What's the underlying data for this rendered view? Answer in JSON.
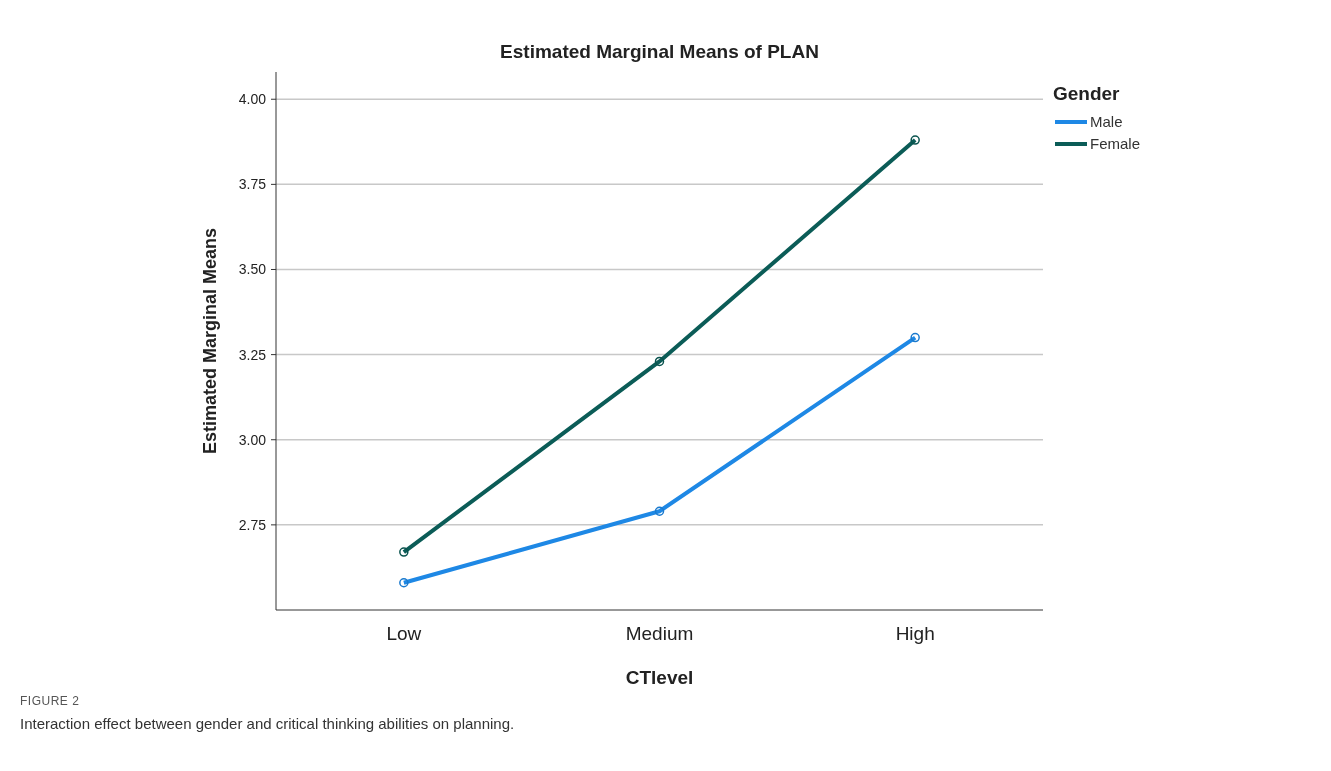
{
  "chart_data": {
    "type": "line",
    "title": "Estimated Marginal Means of PLAN",
    "xlabel": "CTlevel",
    "ylabel": "Estimated Marginal Means",
    "legend_title": "Gender",
    "categories": [
      "Low",
      "Medium",
      "High"
    ],
    "series": [
      {
        "name": "Male",
        "color": "#1e88e5",
        "values": [
          2.58,
          2.79,
          3.3
        ]
      },
      {
        "name": "Female",
        "color": "#0b5c57",
        "values": [
          2.67,
          3.23,
          3.88
        ]
      }
    ],
    "ylim": [
      2.5,
      4.08
    ],
    "yticks": [
      {
        "value": 2.75,
        "label": "2.75"
      },
      {
        "value": 3,
        "label": "3.00"
      },
      {
        "value": 3.25,
        "label": "3.25"
      },
      {
        "value": 3.5,
        "label": "3.50"
      },
      {
        "value": 3.75,
        "label": "3.75"
      },
      {
        "value": 4,
        "label": "4.00"
      }
    ],
    "grid": "y",
    "legend": "top right",
    "marker": "circle",
    "line_style": "solid",
    "annotations": [
      "FIGURE 2",
      "Interaction effect between gender and critical thinking abilities on planning."
    ]
  }
}
